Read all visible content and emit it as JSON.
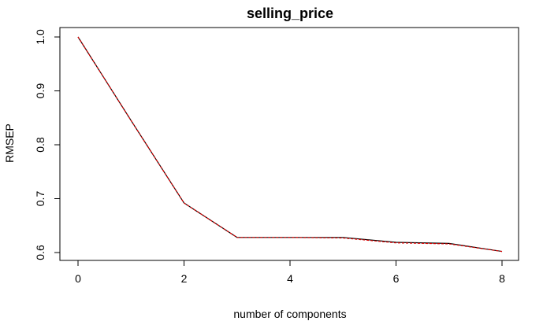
{
  "chart_data": {
    "type": "line",
    "title": "selling_price",
    "xlabel": "number of components",
    "ylabel": "RMSEP",
    "xlim": [
      0,
      8
    ],
    "ylim": [
      0.6,
      1.0
    ],
    "xticks": [
      0,
      2,
      4,
      6,
      8
    ],
    "yticks": [
      0.6,
      0.7,
      0.8,
      0.9,
      1.0
    ],
    "ytick_labels": [
      "0.6",
      "0.7",
      "0.8",
      "0.9",
      "1.0"
    ],
    "grid": false,
    "x": [
      0,
      1,
      2,
      3,
      4,
      5,
      6,
      7,
      8
    ],
    "series": [
      {
        "color": "#000000",
        "style": "solid",
        "values": [
          1.0,
          0.845,
          0.692,
          0.628,
          0.628,
          0.628,
          0.619,
          0.617,
          0.602
        ]
      },
      {
        "color": "#dd0000",
        "style": "dashed",
        "values": [
          1.0,
          0.845,
          0.692,
          0.628,
          0.628,
          0.627,
          0.618,
          0.616,
          0.602
        ]
      }
    ]
  }
}
